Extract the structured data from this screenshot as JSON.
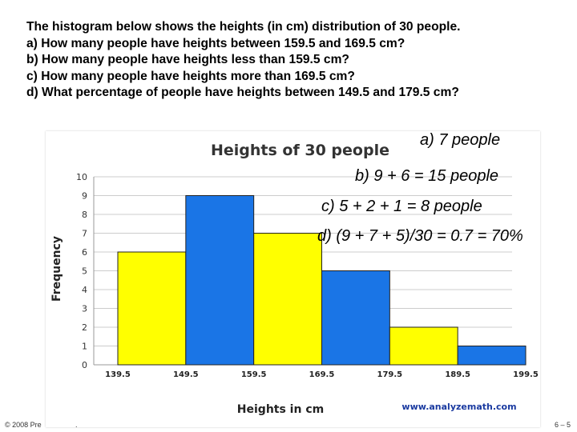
{
  "questions": [
    "The histogram below shows the heights (in cm) distribution of 30 people.",
    "a) How many people have heights between 159.5 and 169.5 cm?",
    "b) How many people have heights less than 159.5 cm?",
    "c) How many people have heights more than 169.5 cm?",
    "d) What percentage of people have heights between 149.5 and 179.5 cm?"
  ],
  "answers": [
    "a) 7 people",
    "b) 9 + 6 = 15 people",
    "c) 5 + 2 + 1 = 8 people",
    "d) (9 + 7 + 5)/30 = 0.7 = 70%"
  ],
  "footer": {
    "left": "© 2008 Pre",
    "dot": ".",
    "right": "6 – 5"
  },
  "chart_data": {
    "type": "bar",
    "title": "Heights of 30 people",
    "xlabel": "Heights in cm",
    "ylabel": "Frequency",
    "watermark": "www.analyzemath.com",
    "ylim": [
      0,
      10
    ],
    "yticks": [
      "0",
      "1",
      "2",
      "3",
      "4",
      "5",
      "6",
      "7",
      "8",
      "9",
      "10"
    ],
    "x_tick_labels": [
      "139.5",
      "149.5",
      "159.5",
      "169.5",
      "179.5",
      "189.5",
      "199.5"
    ],
    "bins": [
      {
        "from": 139.5,
        "to": 149.5,
        "value": 6,
        "color": "#ffff00"
      },
      {
        "from": 149.5,
        "to": 159.5,
        "value": 9,
        "color": "#1a75e6"
      },
      {
        "from": 159.5,
        "to": 169.5,
        "value": 7,
        "color": "#ffff00"
      },
      {
        "from": 169.5,
        "to": 179.5,
        "value": 5,
        "color": "#1a75e6"
      },
      {
        "from": 179.5,
        "to": 189.5,
        "value": 2,
        "color": "#ffff00"
      },
      {
        "from": 189.5,
        "to": 199.5,
        "value": 1,
        "color": "#1a75e6"
      }
    ],
    "grid": true,
    "colors": {
      "title": "#333333",
      "watermark": "#1a3aa0",
      "grid": "#cccccc"
    }
  }
}
